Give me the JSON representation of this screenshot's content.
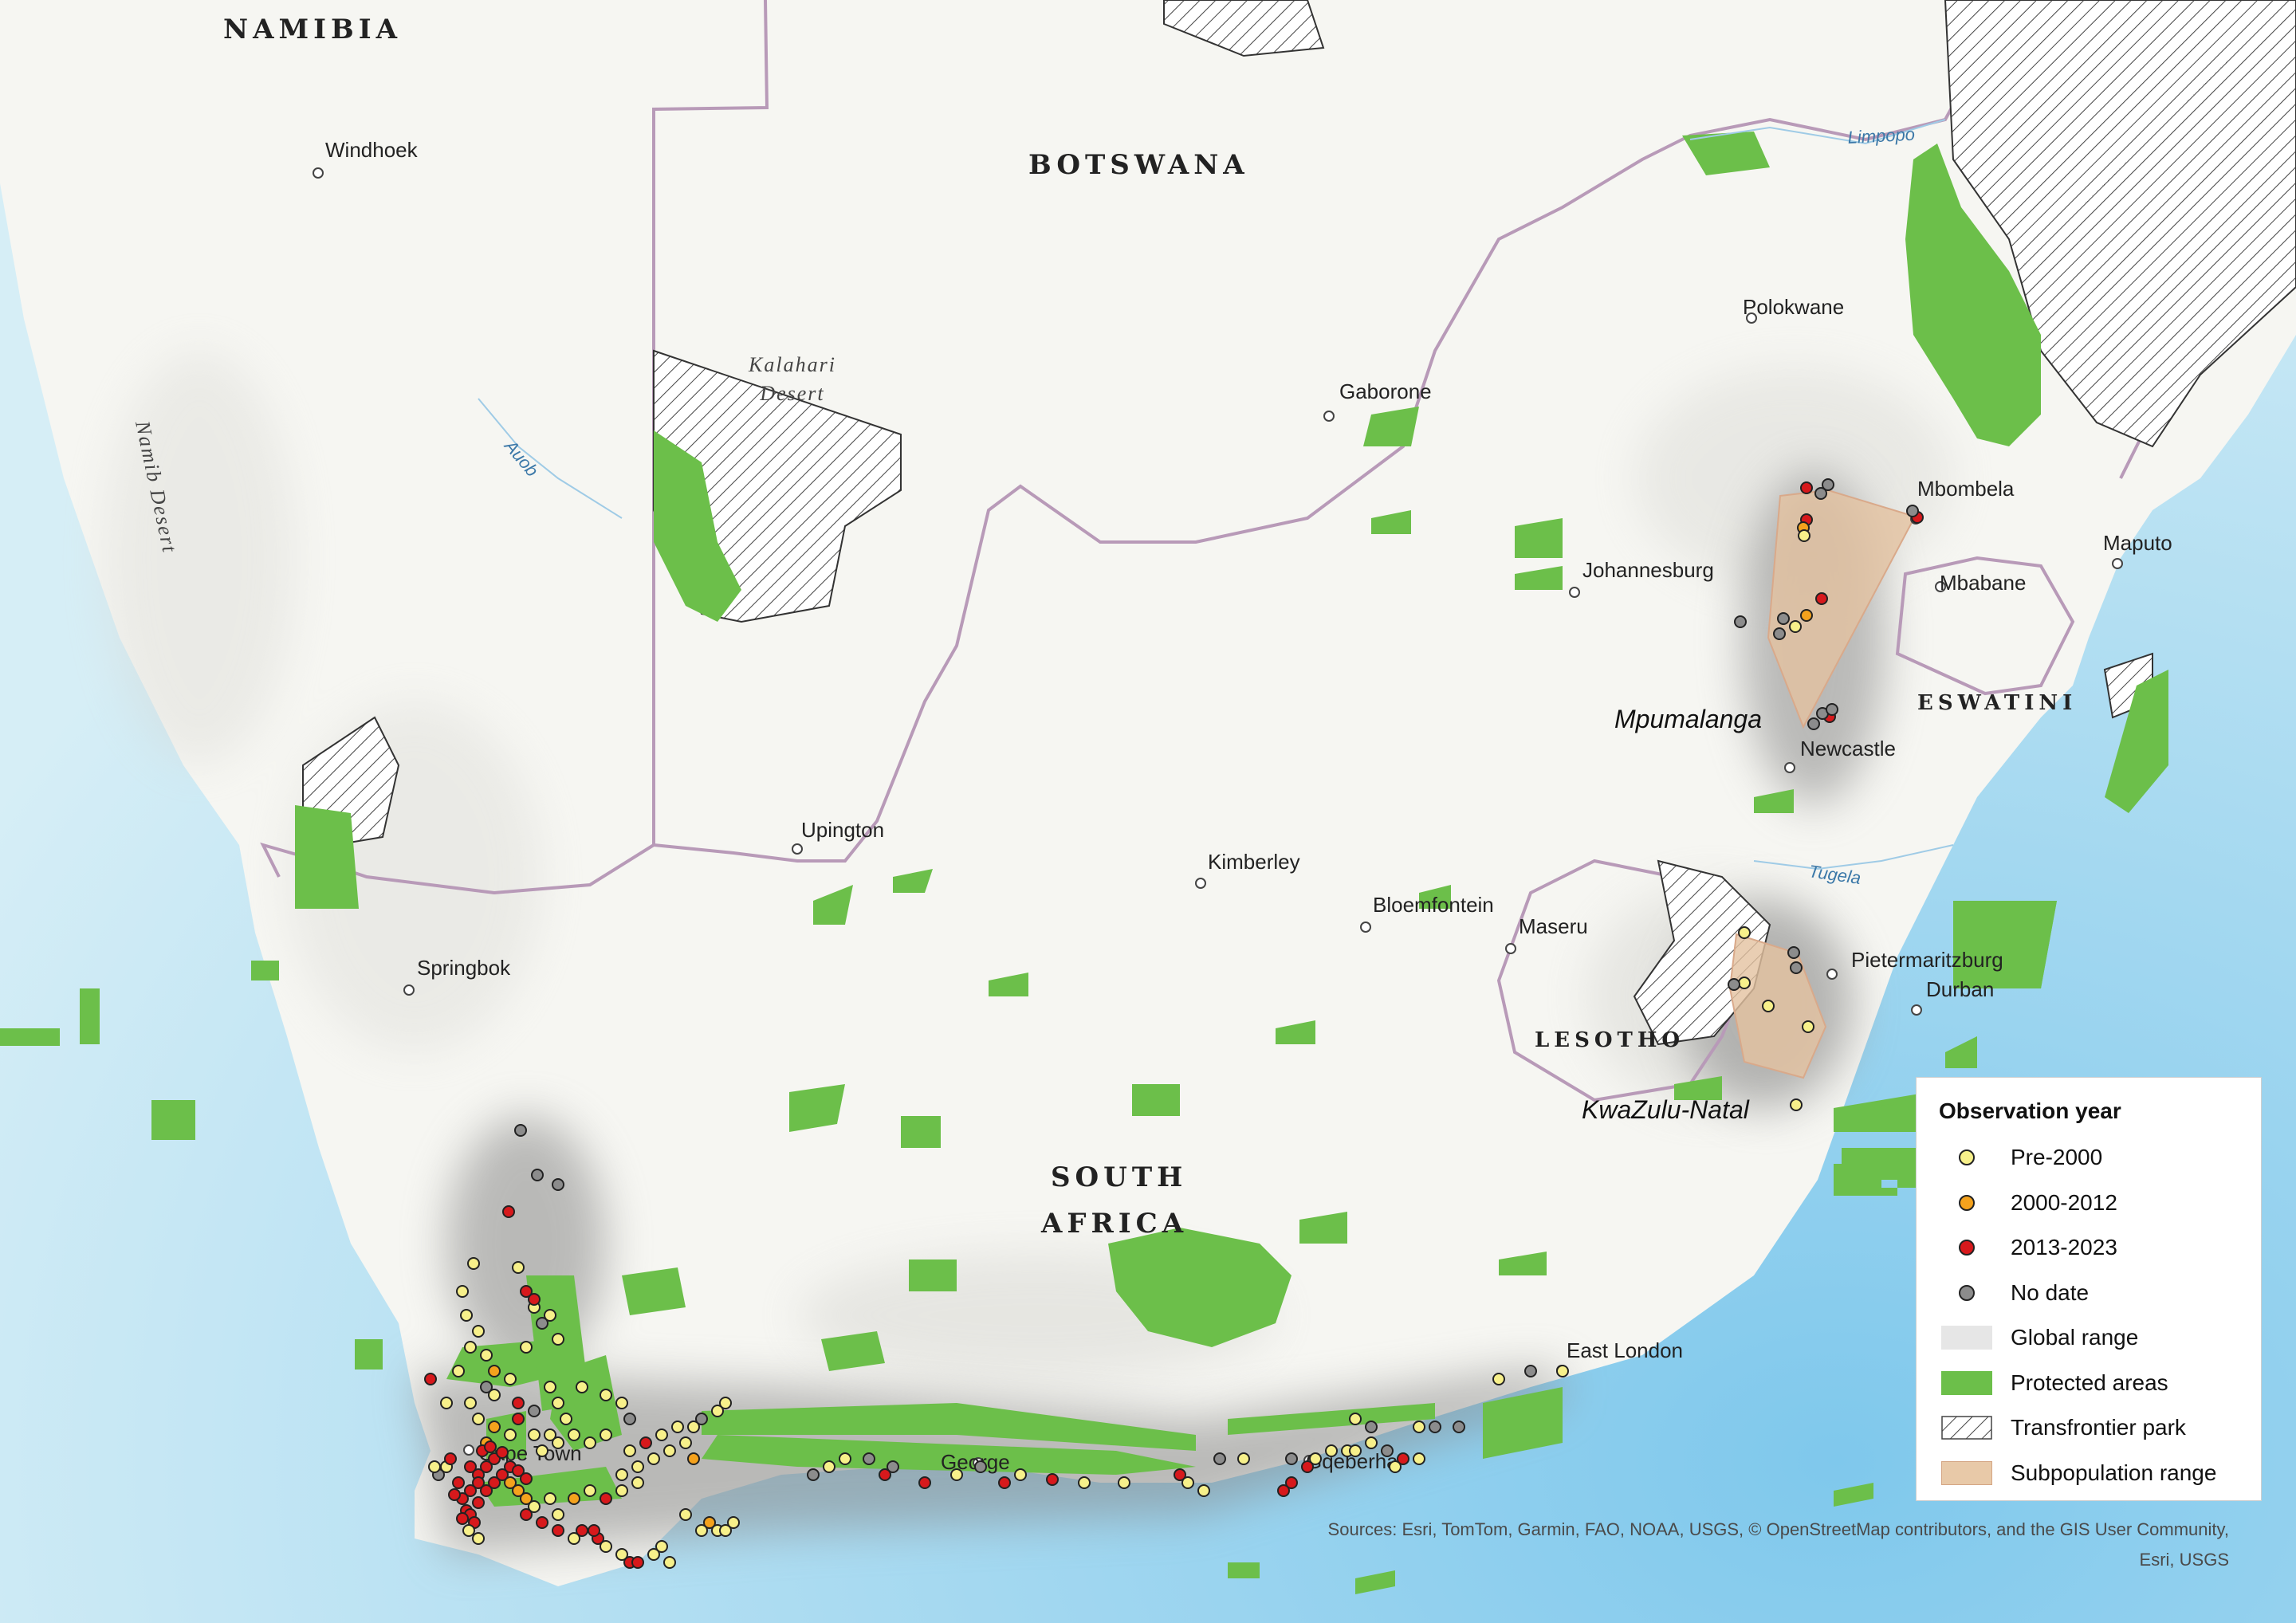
{
  "map": {
    "countries": [
      "NAMIBIA",
      "BOTSWANA",
      "SOUTH",
      "AFRICA",
      "LESOTHO",
      "ESWATINI"
    ],
    "cities": [
      "Windhoek",
      "Gaborone",
      "Polokwane",
      "Mbombela",
      "Maputo",
      "Mbabane",
      "Johannesburg",
      "Newcastle",
      "Upington",
      "Kimberley",
      "Bloemfontein",
      "Maseru",
      "Springbok",
      "Pietermaritzburg",
      "Durban",
      "East London",
      "Cape Town",
      "George",
      "Gqeberha"
    ],
    "water": [
      "Limpopo",
      "Auob",
      "Tugela"
    ],
    "deserts": {
      "kalahari_1": "Kalahari",
      "kalahari_2": "Desert",
      "namib": "Namib Desert"
    },
    "subpopulations": [
      "Mpumalanga",
      "KwaZulu-Natal"
    ],
    "sources_line1": "Sources: Esri, TomTom, Garmin, FAO, NOAA, USGS, © OpenStreetMap contributors, and the GIS User Community,",
    "sources_line2": "Esri, USGS"
  },
  "legend": {
    "title": "Observation year",
    "items": [
      {
        "label": "Pre-2000",
        "color": "#f7f08a"
      },
      {
        "label": "2000-2012",
        "color": "#f4a21d"
      },
      {
        "label": "2013-2023",
        "color": "#d7191c"
      },
      {
        "label": "No date",
        "color": "#8c8c8c"
      },
      {
        "label": "Global range",
        "color": "#e6e6e6"
      },
      {
        "label": "Protected areas",
        "color": "#6cbf4a"
      },
      {
        "label": "Transfrontier park",
        "color": "hatch"
      },
      {
        "label": "Subpopulation range",
        "color": "#e8c9a8"
      }
    ]
  },
  "colors": {
    "ocean": "#cfe9f3",
    "land": "#f7f7f4",
    "protected": "#6cbf4a",
    "border": "#b79bb5",
    "subpop_fill": "#e3c2a0",
    "subpop_edge": "#d9a98a"
  }
}
